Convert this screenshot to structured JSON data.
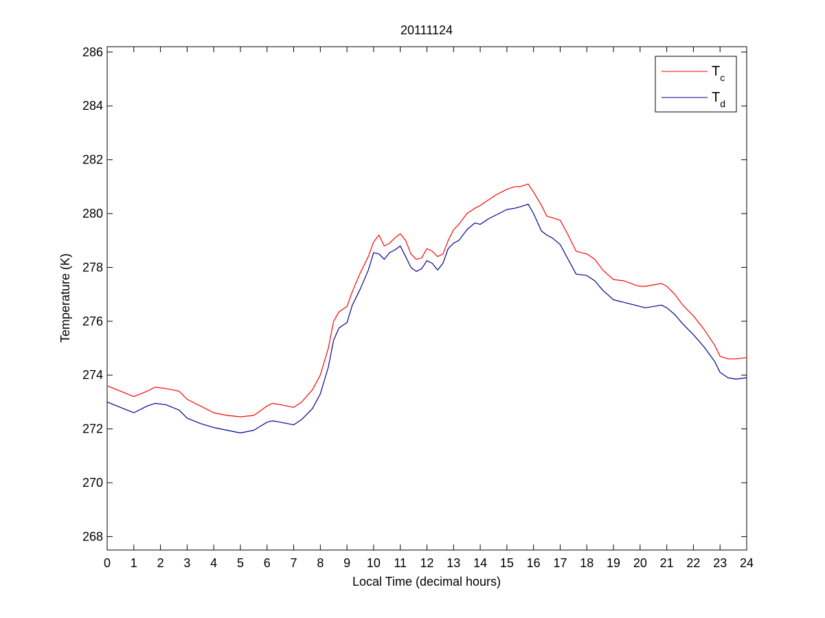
{
  "chart_data": {
    "type": "line",
    "title": "20111124",
    "xlabel": "Local Time (decimal hours)",
    "ylabel": "Temperature (K)",
    "xlim": [
      0,
      24
    ],
    "ylim": [
      267.5,
      286.2
    ],
    "xticks": [
      0,
      1,
      2,
      3,
      4,
      5,
      6,
      7,
      8,
      9,
      10,
      11,
      12,
      13,
      14,
      15,
      16,
      17,
      18,
      19,
      20,
      21,
      22,
      23,
      24
    ],
    "xtick_labels": [
      "0",
      "1",
      "2",
      "3",
      "4",
      "5",
      "6",
      "7",
      "8",
      "9",
      "10",
      "11",
      "12",
      "13",
      "14",
      "15",
      "16",
      "17",
      "18",
      "19",
      "20",
      "21",
      "22",
      "23",
      "24"
    ],
    "yticks": [
      268,
      270,
      272,
      274,
      276,
      278,
      280,
      282,
      284,
      286
    ],
    "ytick_labels": [
      "268",
      "270",
      "272",
      "274",
      "276",
      "278",
      "280",
      "282",
      "284",
      "286"
    ],
    "grid": false,
    "legend_position": "top-right",
    "series": [
      {
        "name": "T",
        "subscript": "c",
        "color": "#ff0000",
        "x": [
          0,
          0.5,
          1,
          1.5,
          1.8,
          2.2,
          2.7,
          3,
          3.5,
          4,
          4.5,
          5,
          5.5,
          6,
          6.2,
          6.5,
          7,
          7.3,
          7.7,
          8,
          8.3,
          8.5,
          8.7,
          9,
          9.2,
          9.5,
          9.8,
          10,
          10.2,
          10.4,
          10.6,
          10.8,
          11,
          11.2,
          11.4,
          11.6,
          11.8,
          12,
          12.2,
          12.4,
          12.6,
          12.8,
          13,
          13.2,
          13.5,
          13.8,
          14,
          14.3,
          14.6,
          15,
          15.3,
          15.5,
          15.8,
          16,
          16.3,
          16.5,
          16.7,
          17,
          17.3,
          17.6,
          18,
          18.3,
          18.6,
          19,
          19.4,
          19.8,
          20,
          20.2,
          20.5,
          20.8,
          21,
          21.3,
          21.6,
          22,
          22.4,
          22.8,
          23,
          23.3,
          23.6,
          24
        ],
        "values": [
          273.6,
          273.4,
          273.2,
          273.4,
          273.55,
          273.5,
          273.4,
          273.1,
          272.85,
          272.6,
          272.5,
          272.45,
          272.5,
          272.85,
          272.95,
          272.9,
          272.8,
          273.0,
          273.45,
          274.0,
          275.0,
          276.0,
          276.35,
          276.55,
          277.1,
          277.8,
          278.4,
          278.95,
          279.2,
          278.8,
          278.9,
          279.1,
          279.25,
          279.0,
          278.5,
          278.3,
          278.35,
          278.7,
          278.6,
          278.4,
          278.5,
          279.0,
          279.4,
          279.6,
          280.0,
          280.2,
          280.3,
          280.5,
          280.7,
          280.9,
          281.0,
          281.0,
          281.1,
          280.8,
          280.3,
          279.9,
          279.85,
          279.75,
          279.2,
          278.6,
          278.5,
          278.3,
          277.9,
          277.55,
          277.5,
          277.35,
          277.3,
          277.3,
          277.35,
          277.4,
          277.3,
          277.0,
          276.6,
          276.2,
          275.7,
          275.1,
          274.7,
          274.6,
          274.6,
          274.65
        ]
      },
      {
        "name": "T",
        "subscript": "d",
        "color": "#00008b",
        "x": [
          0,
          0.5,
          1,
          1.5,
          1.8,
          2.2,
          2.7,
          3,
          3.5,
          4,
          4.5,
          5,
          5.5,
          6,
          6.2,
          6.5,
          7,
          7.3,
          7.7,
          8,
          8.3,
          8.5,
          8.7,
          9,
          9.2,
          9.5,
          9.8,
          10,
          10.2,
          10.4,
          10.6,
          10.8,
          11,
          11.2,
          11.4,
          11.6,
          11.8,
          12,
          12.2,
          12.4,
          12.6,
          12.8,
          13,
          13.2,
          13.5,
          13.8,
          14,
          14.3,
          14.6,
          15,
          15.3,
          15.5,
          15.8,
          16,
          16.3,
          16.5,
          16.7,
          17,
          17.3,
          17.6,
          18,
          18.3,
          18.6,
          19,
          19.4,
          19.8,
          20,
          20.2,
          20.5,
          20.8,
          21,
          21.3,
          21.6,
          22,
          22.4,
          22.8,
          23,
          23.3,
          23.6,
          24
        ],
        "values": [
          273.0,
          272.8,
          272.6,
          272.85,
          272.95,
          272.9,
          272.7,
          272.4,
          272.2,
          272.05,
          271.95,
          271.85,
          271.95,
          272.25,
          272.3,
          272.25,
          272.15,
          272.35,
          272.75,
          273.3,
          274.3,
          275.3,
          275.75,
          275.95,
          276.6,
          277.2,
          277.9,
          278.55,
          278.5,
          278.3,
          278.55,
          278.65,
          278.8,
          278.4,
          278.0,
          277.85,
          277.95,
          278.25,
          278.15,
          277.9,
          278.15,
          278.7,
          278.9,
          279.0,
          279.4,
          279.65,
          279.6,
          279.8,
          279.95,
          280.15,
          280.2,
          280.25,
          280.35,
          280.0,
          279.35,
          279.2,
          279.1,
          278.85,
          278.3,
          277.75,
          277.7,
          277.5,
          277.15,
          276.8,
          276.7,
          276.6,
          276.55,
          276.5,
          276.55,
          276.6,
          276.5,
          276.25,
          275.9,
          275.5,
          275.05,
          274.5,
          274.1,
          273.9,
          273.85,
          273.9
        ]
      }
    ]
  }
}
